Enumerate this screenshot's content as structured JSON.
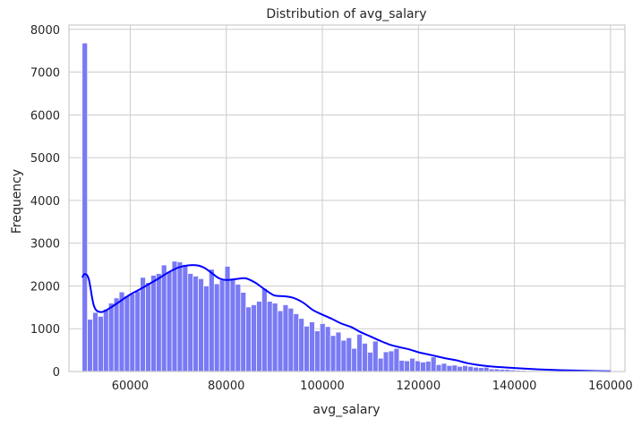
{
  "chart_data": {
    "type": "histogram",
    "title": "Distribution of avg_salary",
    "xlabel": "avg_salary",
    "ylabel": "Frequency",
    "xlim": [
      47250,
      163000
    ],
    "ylim": [
      0,
      8100
    ],
    "xticks": [
      60000,
      80000,
      100000,
      120000,
      140000,
      160000
    ],
    "yticks": [
      0,
      1000,
      2000,
      3000,
      4000,
      5000,
      6000,
      7000,
      8000
    ],
    "grid": true,
    "bin_start": 50000,
    "bin_width": 1100,
    "bar_color": "#7a7af5",
    "kde_color": "#0000ff",
    "values": [
      7680,
      1220,
      1380,
      1290,
      1460,
      1600,
      1720,
      1860,
      1770,
      1820,
      1880,
      2200,
      2080,
      2250,
      2290,
      2490,
      2330,
      2580,
      2560,
      2500,
      2290,
      2230,
      2170,
      2000,
      2390,
      2050,
      2140,
      2460,
      2180,
      2040,
      1850,
      1510,
      1560,
      1640,
      1940,
      1640,
      1600,
      1420,
      1560,
      1480,
      1350,
      1240,
      1060,
      1160,
      950,
      1120,
      1050,
      840,
      920,
      730,
      790,
      540,
      870,
      660,
      450,
      710,
      310,
      460,
      480,
      540,
      260,
      250,
      310,
      250,
      220,
      240,
      340,
      160,
      190,
      140,
      150,
      120,
      140,
      120,
      100,
      90,
      100,
      60,
      60,
      50,
      50,
      40,
      30,
      25,
      20,
      15,
      12,
      10,
      8,
      6,
      5,
      5,
      3,
      3,
      2,
      2,
      1,
      1,
      0,
      0
    ],
    "kde": {
      "x": [
        50000,
        50600,
        51400,
        52500,
        54000,
        56000,
        58000,
        60000,
        62000,
        64000,
        66000,
        68000,
        70000,
        72000,
        74000,
        75500,
        77000,
        78500,
        80000,
        82000,
        84000,
        86000,
        88000,
        90000,
        92000,
        94000,
        96000,
        98000,
        100000,
        102000,
        104000,
        106000,
        108000,
        110000,
        112000,
        114000,
        116000,
        118000,
        120000,
        122000,
        124000,
        126000,
        128000,
        130000,
        132000,
        134000,
        136000,
        140000,
        145000,
        150000,
        155000,
        160000
      ],
      "y": [
        2200,
        2280,
        2150,
        1520,
        1390,
        1500,
        1650,
        1800,
        1920,
        2050,
        2180,
        2320,
        2430,
        2480,
        2480,
        2420,
        2300,
        2180,
        2140,
        2160,
        2180,
        2080,
        1920,
        1780,
        1760,
        1720,
        1610,
        1440,
        1330,
        1230,
        1120,
        1040,
        920,
        820,
        720,
        630,
        570,
        520,
        450,
        400,
        350,
        300,
        260,
        200,
        160,
        130,
        110,
        80,
        50,
        30,
        15,
        5
      ]
    }
  }
}
